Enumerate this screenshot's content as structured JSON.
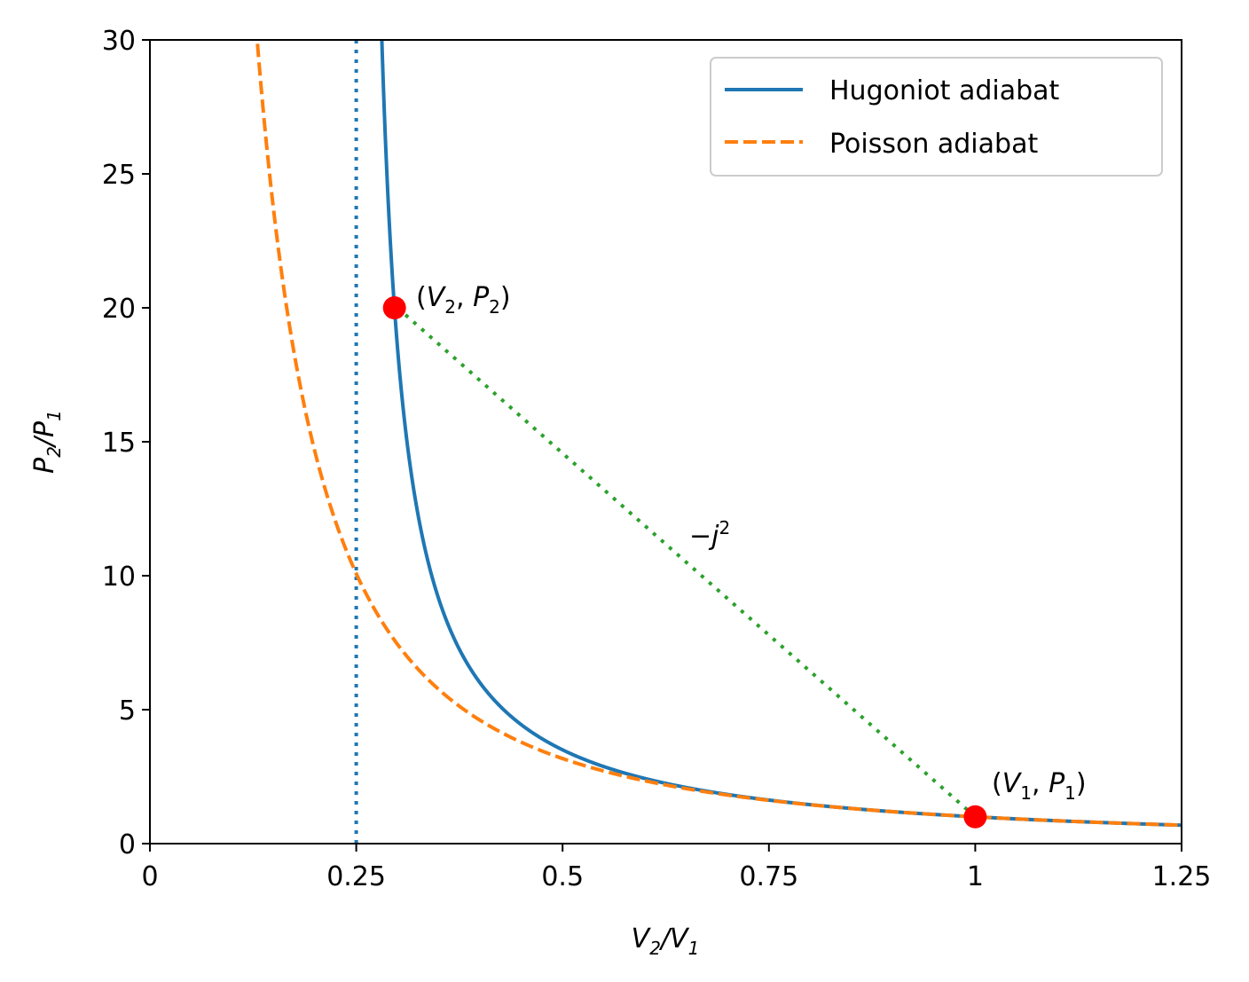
{
  "chart_data": {
    "type": "line",
    "xlim": [
      0,
      1.25
    ],
    "ylim": [
      0,
      30
    ],
    "grid": false,
    "legend_position": "top-right",
    "x_ticks": [
      0,
      0.25,
      0.5,
      0.75,
      1,
      1.25
    ],
    "x_tick_labels": [
      "0",
      "0.25",
      "0.5",
      "0.75",
      "1",
      "1.25"
    ],
    "y_ticks": [
      0,
      5,
      10,
      15,
      20,
      25,
      30
    ],
    "y_tick_labels": [
      "0",
      "5",
      "10",
      "15",
      "20",
      "25",
      "30"
    ],
    "xlabel": {
      "a": "V",
      "a_sub": "2",
      "b": "/V",
      "b_sub": "1"
    },
    "ylabel": {
      "a": "P",
      "a_sub": "2",
      "b": "/P",
      "b_sub": "1"
    },
    "gamma": 1.6667,
    "series": [
      {
        "name": "Hugoniot adiabat",
        "style": "solid",
        "color": "#1f77b4",
        "formula": "P2/P1 = ((gamma+1) - (gamma-1)·x) / ((gamma+1)·x - (gamma-1))"
      },
      {
        "name": "Poisson adiabat",
        "style": "dashed",
        "color": "#ff7f0e",
        "formula": "P2/P1 = x^(-gamma)"
      }
    ],
    "asymptote": {
      "x": 0.25,
      "style": "dotted",
      "color": "#1f77b4"
    },
    "rayleigh_line": {
      "from": [
        1,
        1
      ],
      "to": [
        0.3,
        20
      ],
      "style": "dotted",
      "color": "#2ca02c"
    },
    "points": [
      {
        "x": 0.2963,
        "y": 20,
        "color": "#ff0000"
      },
      {
        "x": 1,
        "y": 1,
        "color": "#ff0000"
      }
    ],
    "annotations": {
      "p2": {
        "open": "(",
        "v": "V",
        "v_sub": "2",
        "comma": ", ",
        "p": "P",
        "p_sub": "2",
        "close": ")"
      },
      "p1": {
        "open": "(",
        "v": "V",
        "v_sub": "1",
        "comma": ", ",
        "p": "P",
        "p_sub": "1",
        "close": ")"
      },
      "slope": {
        "text": "−j",
        "sup": "2"
      }
    }
  }
}
